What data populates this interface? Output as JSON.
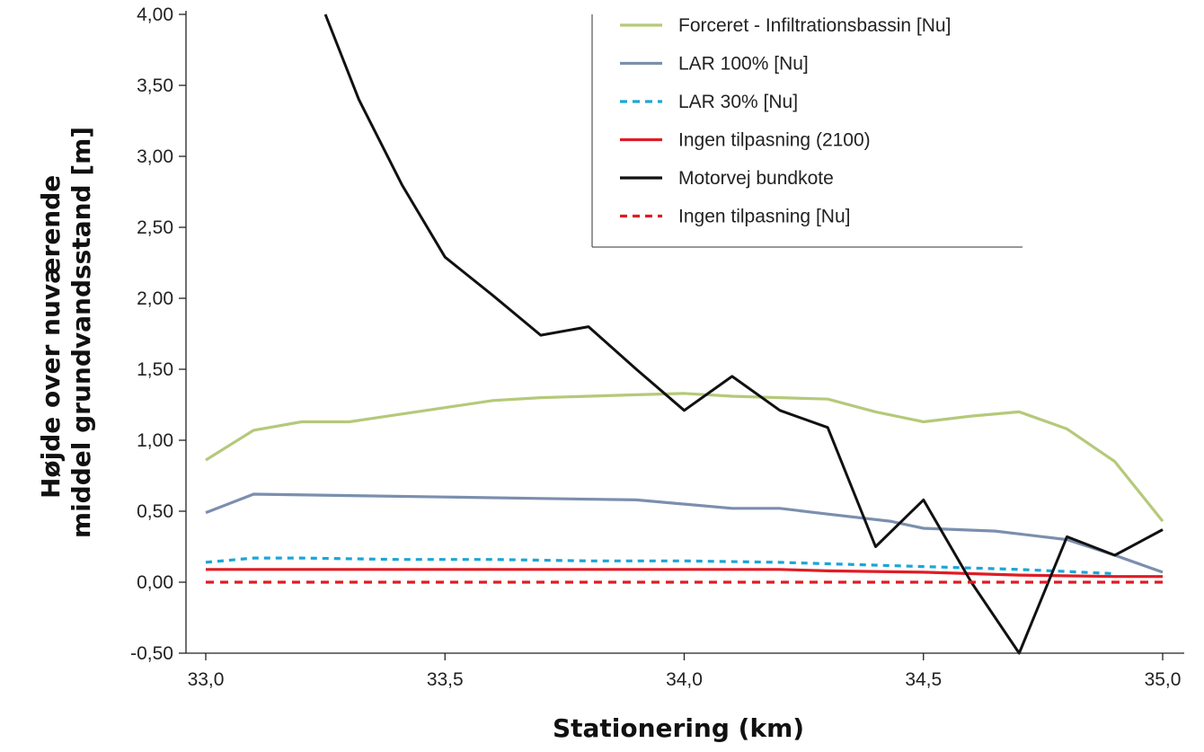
{
  "chart_data": {
    "type": "line",
    "title": "",
    "xlabel": "Stationering (km)",
    "ylabel_line1": "Højde over nuværende",
    "ylabel_line2": "middel grundvandsstand [m]",
    "xlim": [
      33.0,
      35.0
    ],
    "ylim": [
      -0.5,
      4.0
    ],
    "x_ticks": [
      33.0,
      33.5,
      34.0,
      34.5,
      35.0
    ],
    "x_tick_labels": [
      "33,0",
      "33,5",
      "34,0",
      "34,5",
      "35,0"
    ],
    "y_ticks": [
      -0.5,
      0.0,
      0.5,
      1.0,
      1.5,
      2.0,
      2.5,
      3.0,
      3.5,
      4.0
    ],
    "y_tick_labels": [
      "-0,50",
      "0,00",
      "0,50",
      "1,00",
      "1,50",
      "2,00",
      "2,50",
      "3,00",
      "3,50",
      "4,00"
    ],
    "grid": false,
    "legend_position": "top-right",
    "series": [
      {
        "name": "Forceret - Infiltrationsbassin [Nu]",
        "color": "#b5c97a",
        "dash": false,
        "x": [
          33.0,
          33.1,
          33.2,
          33.3,
          33.4,
          33.5,
          33.6,
          33.7,
          33.8,
          33.9,
          34.0,
          34.1,
          34.2,
          34.3,
          34.4,
          34.5,
          34.6,
          34.7,
          34.8,
          34.9,
          35.0
        ],
        "y": [
          0.86,
          1.07,
          1.13,
          1.13,
          1.18,
          1.23,
          1.28,
          1.3,
          1.31,
          1.32,
          1.33,
          1.31,
          1.3,
          1.29,
          1.2,
          1.13,
          1.17,
          1.2,
          1.08,
          0.85,
          0.43
        ]
      },
      {
        "name": "LAR 100% [Nu]",
        "color": "#7b8fae",
        "dash": false,
        "x": [
          33.0,
          33.1,
          33.3,
          33.5,
          33.7,
          33.9,
          34.1,
          34.2,
          34.3,
          34.43,
          34.5,
          34.65,
          34.8,
          34.9,
          35.0
        ],
        "y": [
          0.49,
          0.62,
          0.61,
          0.6,
          0.59,
          0.58,
          0.52,
          0.52,
          0.48,
          0.43,
          0.38,
          0.36,
          0.3,
          0.19,
          0.07
        ]
      },
      {
        "name": "LAR 30% [Nu]",
        "color": "#1aa6d6",
        "dash": true,
        "x": [
          33.0,
          33.1,
          33.2,
          33.4,
          33.6,
          33.8,
          34.0,
          34.2,
          34.3,
          34.5,
          34.7,
          34.9
        ],
        "y": [
          0.14,
          0.17,
          0.17,
          0.16,
          0.16,
          0.15,
          0.15,
          0.14,
          0.13,
          0.11,
          0.09,
          0.06
        ]
      },
      {
        "name": "Ingen tilpasning (2100)",
        "color": "#e01b24",
        "dash": false,
        "x": [
          33.0,
          33.2,
          33.4,
          33.6,
          33.8,
          34.0,
          34.2,
          34.3,
          34.5,
          34.7,
          34.9,
          35.0
        ],
        "y": [
          0.09,
          0.09,
          0.09,
          0.09,
          0.09,
          0.09,
          0.09,
          0.08,
          0.07,
          0.05,
          0.04,
          0.04
        ]
      },
      {
        "name": "Motorvej bundkote",
        "color": "#111111",
        "dash": false,
        "x": [
          33.25,
          33.32,
          33.41,
          33.5,
          33.6,
          33.7,
          33.8,
          33.9,
          34.0,
          34.1,
          34.2,
          34.3,
          34.4,
          34.5,
          34.6,
          34.7,
          34.8,
          34.9,
          35.0
        ],
        "y": [
          4.0,
          3.4,
          2.8,
          2.29,
          2.02,
          1.74,
          1.8,
          1.5,
          1.21,
          1.45,
          1.21,
          1.09,
          0.25,
          0.58,
          0.0,
          -0.5,
          0.32,
          0.19,
          0.37
        ]
      },
      {
        "name": "Ingen tilpasning [Nu]",
        "color": "#e01b24",
        "dash": true,
        "x": [
          33.0,
          35.0
        ],
        "y": [
          0.0,
          0.0
        ]
      }
    ]
  }
}
